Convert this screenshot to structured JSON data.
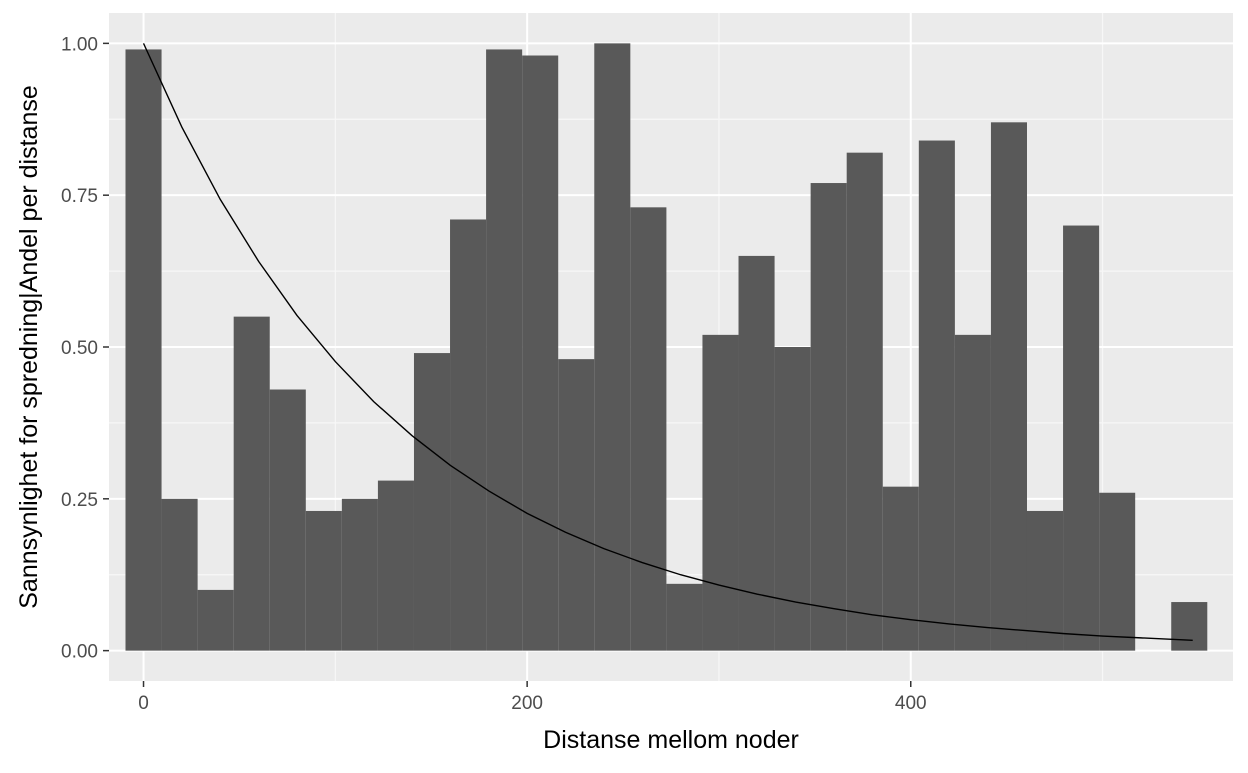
{
  "chart_data": {
    "type": "bar",
    "title": "",
    "xlabel": "Distanse mellom noder",
    "ylabel": "Sannsynlighet for spredning|Andel per distanse",
    "xlim": [
      -18,
      568
    ],
    "ylim": [
      -0.05,
      1.05
    ],
    "x_ticks": [
      0,
      200,
      400
    ],
    "x_tick_labels": [
      "0",
      "200",
      "400"
    ],
    "y_ticks": [
      0,
      0.25,
      0.5,
      0.75,
      1.0
    ],
    "y_tick_labels": [
      "0.00",
      "0.25",
      "0.50",
      "0.75",
      "1.00"
    ],
    "grid": true,
    "bin_width": 18.8,
    "bars": [
      {
        "x": 0.0,
        "value": 0.99
      },
      {
        "x": 18.8,
        "value": 0.25
      },
      {
        "x": 37.6,
        "value": 0.1
      },
      {
        "x": 56.4,
        "value": 0.55
      },
      {
        "x": 75.2,
        "value": 0.43
      },
      {
        "x": 94.0,
        "value": 0.23
      },
      {
        "x": 112.8,
        "value": 0.25
      },
      {
        "x": 131.6,
        "value": 0.28
      },
      {
        "x": 150.4,
        "value": 0.49
      },
      {
        "x": 169.2,
        "value": 0.71
      },
      {
        "x": 188.0,
        "value": 0.99
      },
      {
        "x": 206.8,
        "value": 0.98
      },
      {
        "x": 225.6,
        "value": 0.48
      },
      {
        "x": 244.4,
        "value": 1.0
      },
      {
        "x": 263.2,
        "value": 0.73
      },
      {
        "x": 282.0,
        "value": 0.11
      },
      {
        "x": 300.8,
        "value": 0.52
      },
      {
        "x": 319.6,
        "value": 0.65
      },
      {
        "x": 338.4,
        "value": 0.5
      },
      {
        "x": 357.2,
        "value": 0.77
      },
      {
        "x": 376.0,
        "value": 0.82
      },
      {
        "x": 394.8,
        "value": 0.27
      },
      {
        "x": 413.6,
        "value": 0.84
      },
      {
        "x": 432.4,
        "value": 0.52
      },
      {
        "x": 451.2,
        "value": 0.87
      },
      {
        "x": 470.0,
        "value": 0.23
      },
      {
        "x": 488.8,
        "value": 0.7
      },
      {
        "x": 507.6,
        "value": 0.26
      },
      {
        "x": 545.2,
        "value": 0.08
      }
    ],
    "curve": {
      "type": "line",
      "x": [
        0,
        20,
        40,
        60,
        80,
        100,
        120,
        140,
        160,
        180,
        200,
        220,
        240,
        260,
        280,
        300,
        320,
        340,
        360,
        380,
        400,
        420,
        440,
        460,
        480,
        500,
        520,
        547
      ],
      "y": [
        1.0,
        0.862,
        0.743,
        0.641,
        0.552,
        0.476,
        0.41,
        0.354,
        0.305,
        0.263,
        0.226,
        0.195,
        0.168,
        0.145,
        0.125,
        0.108,
        0.093,
        0.08,
        0.069,
        0.059,
        0.051,
        0.044,
        0.038,
        0.033,
        0.028,
        0.024,
        0.021,
        0.017
      ]
    },
    "colors": {
      "panel_bg": "#ebebeb",
      "grid_major": "#ffffff",
      "grid_minor": "#f7f7f7",
      "bar_fill": "#595959",
      "curve": "#000000",
      "tick_label": "#4d4d4d",
      "tick_mark": "#333333",
      "title_text": "#000000"
    }
  }
}
